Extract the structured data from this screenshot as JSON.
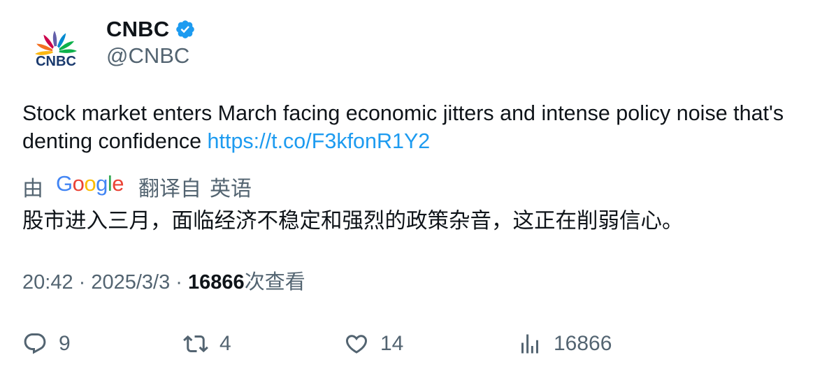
{
  "author": {
    "avatar_logo_text": "CNBC",
    "display_name": "CNBC",
    "handle": "@CNBC",
    "verified_icon": "verified-badge-icon"
  },
  "tweet": {
    "text": "Stock market enters March facing economic jitters and intense policy noise that's denting confidence ",
    "link": "https://t.co/F3kfonR1Y2"
  },
  "translation": {
    "by_label": "由",
    "provider": "Google",
    "translated_from_label": "翻译自",
    "source_language": "英语",
    "translated_text": "股市进入三月，面临经济不稳定和强烈的政策杂音，这正在削弱信心。"
  },
  "meta": {
    "time": "20:42",
    "separator": " · ",
    "date": "2025/3/3",
    "views_count": "16866",
    "views_label": "次查看"
  },
  "actions": {
    "replies": "9",
    "retweets": "4",
    "likes": "14",
    "views": "16866"
  },
  "colors": {
    "text_primary": "#0f1419",
    "text_secondary": "#536471",
    "link": "#1d9bf0",
    "verified": "#1d9bf0"
  },
  "icons": [
    "peacock-logo-icon",
    "verified-badge-icon",
    "reply-icon",
    "retweet-icon",
    "like-icon",
    "analytics-icon"
  ]
}
